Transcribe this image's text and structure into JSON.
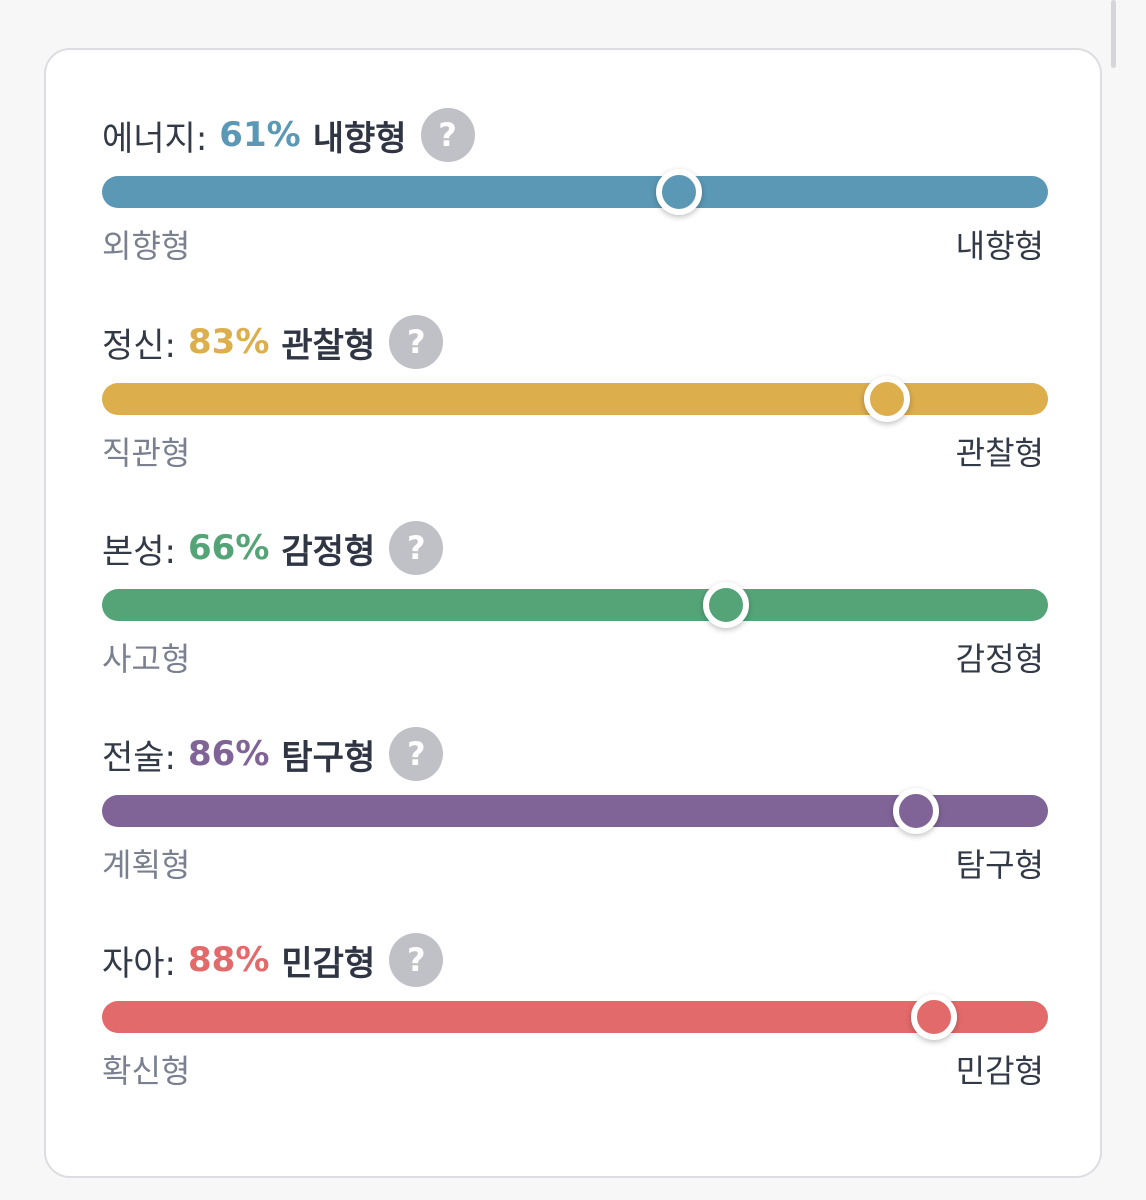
{
  "traits": [
    {
      "name": "에너지:",
      "percent": "61%",
      "percent_value": 61,
      "type": "내향형",
      "help": "?",
      "left_label": "외향형",
      "right_label": "내향형",
      "color": "#5b98b5"
    },
    {
      "name": "정신:",
      "percent": "83%",
      "percent_value": 83,
      "type": "관찰형",
      "help": "?",
      "left_label": "직관형",
      "right_label": "관찰형",
      "color": "#dcae4c"
    },
    {
      "name": "본성:",
      "percent": "66%",
      "percent_value": 66,
      "type": "감정형",
      "help": "?",
      "left_label": "사고형",
      "right_label": "감정형",
      "color": "#55a478"
    },
    {
      "name": "전술:",
      "percent": "86%",
      "percent_value": 86,
      "type": "탐구형",
      "help": "?",
      "left_label": "계획형",
      "right_label": "탐구형",
      "color": "#806497"
    },
    {
      "name": "자아:",
      "percent": "88%",
      "percent_value": 88,
      "type": "민감형",
      "help": "?",
      "left_label": "확신형",
      "right_label": "민감형",
      "color": "#e36a6a"
    }
  ]
}
